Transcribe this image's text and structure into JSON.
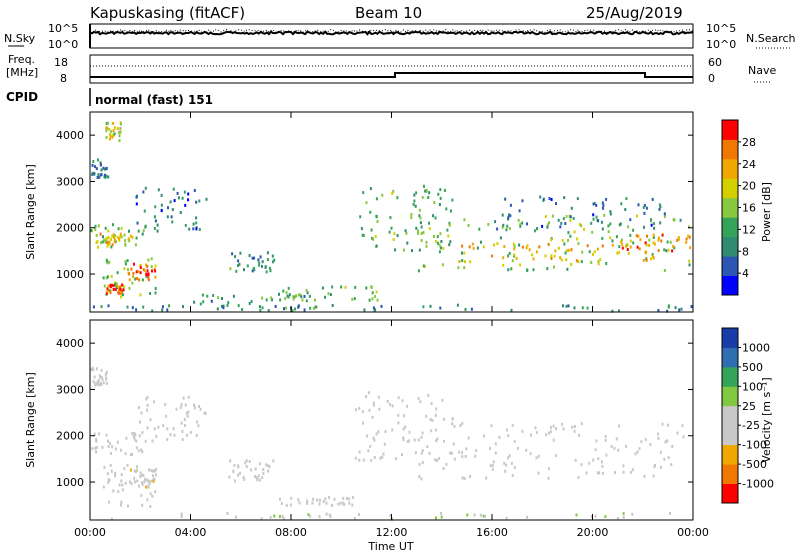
{
  "header": {
    "station": "Kapuskasing (fitACF)",
    "beam": "Beam 10",
    "date": "25/Aug/2019"
  },
  "sky_panel": {
    "left_label": "N.Sky",
    "right_label": "N.Search",
    "left_ticks": [
      "10^5",
      "10^0"
    ],
    "right_ticks": [
      "10^5",
      "10^0"
    ]
  },
  "freq_panel": {
    "label_line1": "Freq.",
    "label_line2": "[MHz]",
    "left_ticks": [
      "18",
      "8"
    ],
    "right_ticks": [
      "60",
      "0"
    ],
    "right_label": "Nave"
  },
  "cpid": {
    "label": "CPID",
    "value": "normal (fast) 151"
  },
  "ylabel": "Slant Range [km]",
  "xlabel": "Time UT",
  "colors": {
    "scale_power": [
      "#0000ff",
      "#2d55b4",
      "#2f8c6e",
      "#36a35a",
      "#88c840",
      "#d4d000",
      "#f0a800",
      "#f07800",
      "#ff0000"
    ],
    "scale_velocity": [
      "#ff0000",
      "#f07800",
      "#f0a800",
      "#c8c8c8",
      "#c8c8c8",
      "#80c840",
      "#36a35a",
      "#2f6eb0",
      "#1a3ca8"
    ]
  },
  "chart_data": [
    {
      "type": "heatmap",
      "name": "power",
      "xlabel": "Time UT",
      "ylabel": "Slant Range [km]",
      "xlim": [
        "00:00",
        "24:00"
      ],
      "x_ticks": [
        "00:00",
        "04:00",
        "08:00",
        "12:00",
        "16:00",
        "20:00",
        "00:00"
      ],
      "ylim": [
        180,
        4500
      ],
      "y_ticks": [
        1000,
        2000,
        3000,
        4000
      ],
      "colorbar": {
        "label": "Power [dB]",
        "ticks": [
          "4",
          "8",
          "12",
          "16",
          "20",
          "24",
          "28"
        ],
        "range": [
          0,
          30
        ]
      },
      "regions": [
        {
          "t0": 0.0,
          "t1": 2.2,
          "r0": 1600,
          "r1": 2100,
          "level": 14
        },
        {
          "t0": 0.2,
          "t1": 1.6,
          "r0": 1650,
          "r1": 1900,
          "level": 19
        },
        {
          "t0": 1.8,
          "t1": 4.6,
          "r0": 1900,
          "r1": 2900,
          "level": 7
        },
        {
          "t0": 0.5,
          "t1": 2.6,
          "r0": 500,
          "r1": 1400,
          "level": 15
        },
        {
          "t0": 1.5,
          "t1": 2.6,
          "r0": 900,
          "r1": 1250,
          "level": 27
        },
        {
          "t0": 0.6,
          "t1": 1.3,
          "r0": 600,
          "r1": 800,
          "level": 27
        },
        {
          "t0": 0.0,
          "t1": 0.7,
          "r0": 3100,
          "r1": 3500,
          "level": 9
        },
        {
          "t0": 0.6,
          "t1": 1.2,
          "r0": 3900,
          "r1": 4300,
          "level": 18
        },
        {
          "t0": 5.5,
          "t1": 7.3,
          "r0": 1050,
          "r1": 1500,
          "level": 9
        },
        {
          "t0": 4.0,
          "t1": 9.0,
          "r0": 250,
          "r1": 600,
          "level": 10
        },
        {
          "t0": 7.5,
          "t1": 11.5,
          "r0": 450,
          "r1": 760,
          "level": 13
        },
        {
          "t0": 0.0,
          "t1": 24.0,
          "r0": 180,
          "r1": 360,
          "level": 8
        },
        {
          "t0": 10.5,
          "t1": 14.5,
          "r0": 1500,
          "r1": 3000,
          "level": 12
        },
        {
          "t0": 13.0,
          "t1": 24.0,
          "r0": 1100,
          "r1": 2300,
          "level": 14
        },
        {
          "t0": 14.5,
          "t1": 22.5,
          "r0": 1300,
          "r1": 1700,
          "level": 21
        },
        {
          "t0": 21.0,
          "t1": 24.0,
          "r0": 1500,
          "r1": 1900,
          "level": 24
        },
        {
          "t0": 16.0,
          "t1": 23.0,
          "r0": 2000,
          "r1": 2700,
          "level": 7
        }
      ]
    },
    {
      "type": "heatmap",
      "name": "velocity",
      "xlabel": "Time UT",
      "ylabel": "Slant Range [km]",
      "xlim": [
        "00:00",
        "24:00"
      ],
      "x_ticks": [
        "00:00",
        "04:00",
        "08:00",
        "12:00",
        "16:00",
        "20:00",
        "00:00"
      ],
      "ylim": [
        180,
        4500
      ],
      "y_ticks": [
        1000,
        2000,
        3000,
        4000
      ],
      "colorbar": {
        "label": "Velocity [m s⁻¹]",
        "ticks": [
          "-1000",
          "-500",
          "-100",
          "-25",
          "25",
          "100",
          "500",
          "1000"
        ],
        "range": [
          -1200,
          1200
        ]
      },
      "regions": [
        {
          "t0": 0.0,
          "t1": 2.2,
          "r0": 1600,
          "r1": 2100,
          "level": 0
        },
        {
          "t0": 1.8,
          "t1": 4.6,
          "r0": 1900,
          "r1": 2900,
          "level": 0
        },
        {
          "t0": 0.5,
          "t1": 2.6,
          "r0": 500,
          "r1": 1400,
          "level": 0
        },
        {
          "t0": 1.5,
          "t1": 2.6,
          "r0": 900,
          "r1": 1300,
          "level": -300
        },
        {
          "t0": 0.0,
          "t1": 0.7,
          "r0": 3100,
          "r1": 3500,
          "level": 0
        },
        {
          "t0": 5.5,
          "t1": 7.3,
          "r0": 1050,
          "r1": 1500,
          "level": 0
        },
        {
          "t0": 7.5,
          "t1": 10.5,
          "r0": 500,
          "r1": 700,
          "level": -120
        },
        {
          "t0": 0.0,
          "t1": 24.0,
          "r0": 180,
          "r1": 360,
          "level": 60
        },
        {
          "t0": 10.5,
          "t1": 14.5,
          "r0": 1500,
          "r1": 3000,
          "level": 0
        },
        {
          "t0": 13.0,
          "t1": 24.0,
          "r0": 1100,
          "r1": 2300,
          "level": 0
        }
      ]
    }
  ]
}
